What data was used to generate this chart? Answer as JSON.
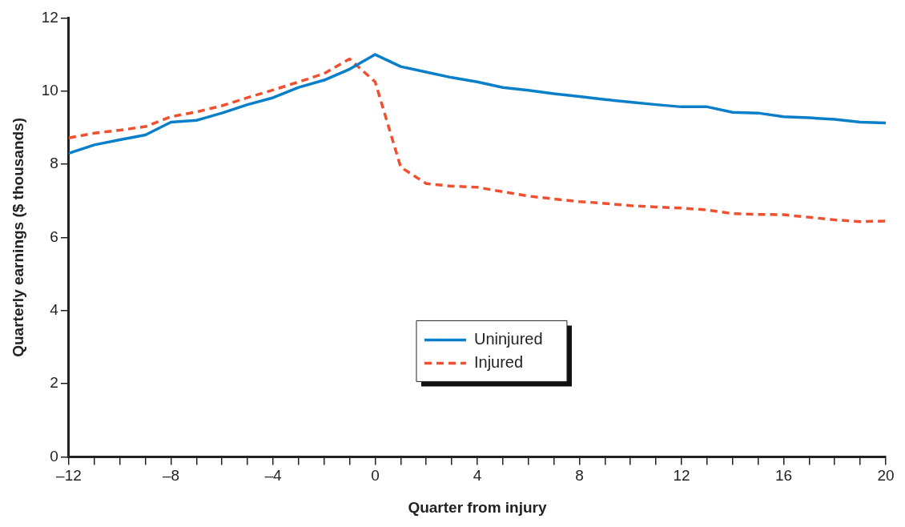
{
  "chart_data": {
    "type": "line",
    "xlabel": "Quarter from injury",
    "ylabel": "Quarterly earnings ($ thousands)",
    "x": [
      -12,
      -11,
      -10,
      -9,
      -8,
      -7,
      -6,
      -5,
      -4,
      -3,
      -2,
      -1,
      0,
      1,
      2,
      3,
      4,
      5,
      6,
      7,
      8,
      9,
      10,
      11,
      12,
      13,
      14,
      15,
      16,
      17,
      18,
      19,
      20
    ],
    "series": [
      {
        "name": "Uninjured",
        "color": "#0a7fc9",
        "line_style": "solid",
        "values": [
          8.3,
          8.53,
          8.67,
          8.8,
          9.15,
          9.2,
          9.4,
          9.63,
          9.82,
          10.1,
          10.3,
          10.6,
          11.0,
          10.67,
          10.52,
          10.37,
          10.25,
          10.1,
          10.02,
          9.93,
          9.85,
          9.77,
          9.7,
          9.63,
          9.57,
          9.57,
          9.42,
          9.4,
          9.3,
          9.27,
          9.23,
          9.15,
          9.13
        ]
      },
      {
        "name": "Injured",
        "color": "#f05030",
        "line_style": "dashed",
        "values": [
          8.72,
          8.85,
          8.93,
          9.03,
          9.3,
          9.43,
          9.6,
          9.82,
          10.03,
          10.25,
          10.48,
          10.88,
          10.25,
          7.92,
          7.47,
          7.4,
          7.37,
          7.25,
          7.13,
          7.05,
          6.98,
          6.93,
          6.87,
          6.83,
          6.8,
          6.75,
          6.65,
          6.63,
          6.62,
          6.55,
          6.48,
          6.43,
          6.45
        ]
      }
    ],
    "xlim": [
      -12,
      20
    ],
    "xticks": [
      {
        "value": -12,
        "label": "–12"
      },
      {
        "value": -11,
        "label": null
      },
      {
        "value": -10,
        "label": null
      },
      {
        "value": -9,
        "label": null
      },
      {
        "value": -8,
        "label": "–8"
      },
      {
        "value": -7,
        "label": null
      },
      {
        "value": -6,
        "label": null
      },
      {
        "value": -5,
        "label": null
      },
      {
        "value": -4,
        "label": "–4"
      },
      {
        "value": -3,
        "label": null
      },
      {
        "value": -2,
        "label": null
      },
      {
        "value": -1,
        "label": null
      },
      0,
      {
        "value": 1,
        "label": null
      },
      {
        "value": 2,
        "label": null
      },
      {
        "value": 3,
        "label": null
      },
      4,
      {
        "value": 5,
        "label": null
      },
      {
        "value": 6,
        "label": null
      },
      {
        "value": 7,
        "label": null
      },
      8,
      {
        "value": 9,
        "label": null
      },
      {
        "value": 10,
        "label": null
      },
      {
        "value": 11,
        "label": null
      },
      12,
      {
        "value": 13,
        "label": null
      },
      {
        "value": 14,
        "label": null
      },
      {
        "value": 15,
        "label": null
      },
      16,
      {
        "value": 17,
        "label": null
      },
      {
        "value": 18,
        "label": null
      },
      {
        "value": 19,
        "label": null
      },
      20
    ],
    "ylim": [
      0,
      12
    ],
    "yticks": [
      0,
      2,
      4,
      6,
      8,
      10,
      12
    ],
    "grid": false,
    "legend": "bottom",
    "marker": "none"
  }
}
